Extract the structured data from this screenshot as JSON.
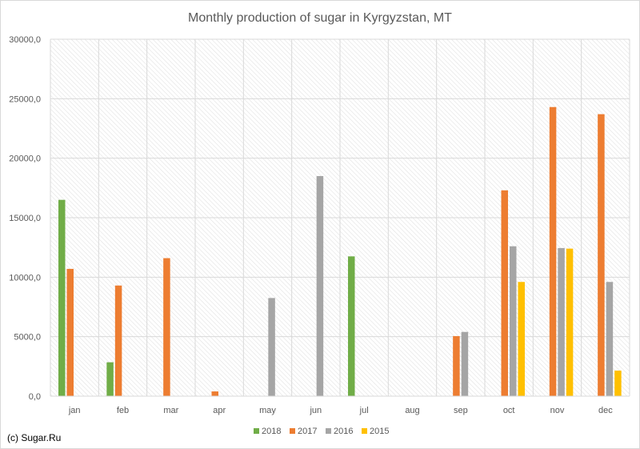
{
  "chart_data": {
    "type": "bar",
    "title": "Monthly production of sugar in Kyrgyzstan, MT",
    "xlabel": "",
    "ylabel": "",
    "categories": [
      "jan",
      "feb",
      "mar",
      "apr",
      "may",
      "jun",
      "jul",
      "aug",
      "sep",
      "oct",
      "nov",
      "dec"
    ],
    "ylim": [
      0,
      30000
    ],
    "yticks": [
      "0,0",
      "5000,0",
      "10000,0",
      "15000,0",
      "20000,0",
      "25000,0",
      "30000,0"
    ],
    "grid": true,
    "legend_position": "bottom",
    "series": [
      {
        "name": "2018",
        "color": "#70ad47",
        "values": [
          16500,
          2850,
          null,
          null,
          null,
          null,
          11750,
          null,
          null,
          null,
          null,
          null
        ]
      },
      {
        "name": "2017",
        "color": "#ed7d31",
        "values": [
          10700,
          9300,
          11600,
          400,
          null,
          null,
          null,
          null,
          5050,
          17300,
          24300,
          23700
        ]
      },
      {
        "name": "2016",
        "color": "#a5a5a5",
        "values": [
          null,
          null,
          null,
          null,
          8250,
          18500,
          null,
          null,
          5400,
          12600,
          12450,
          9600
        ]
      },
      {
        "name": "2015",
        "color": "#ffc000",
        "values": [
          null,
          null,
          null,
          null,
          null,
          null,
          null,
          null,
          null,
          9600,
          12400,
          2150
        ]
      }
    ]
  },
  "source_note": "(c) Sugar.Ru"
}
